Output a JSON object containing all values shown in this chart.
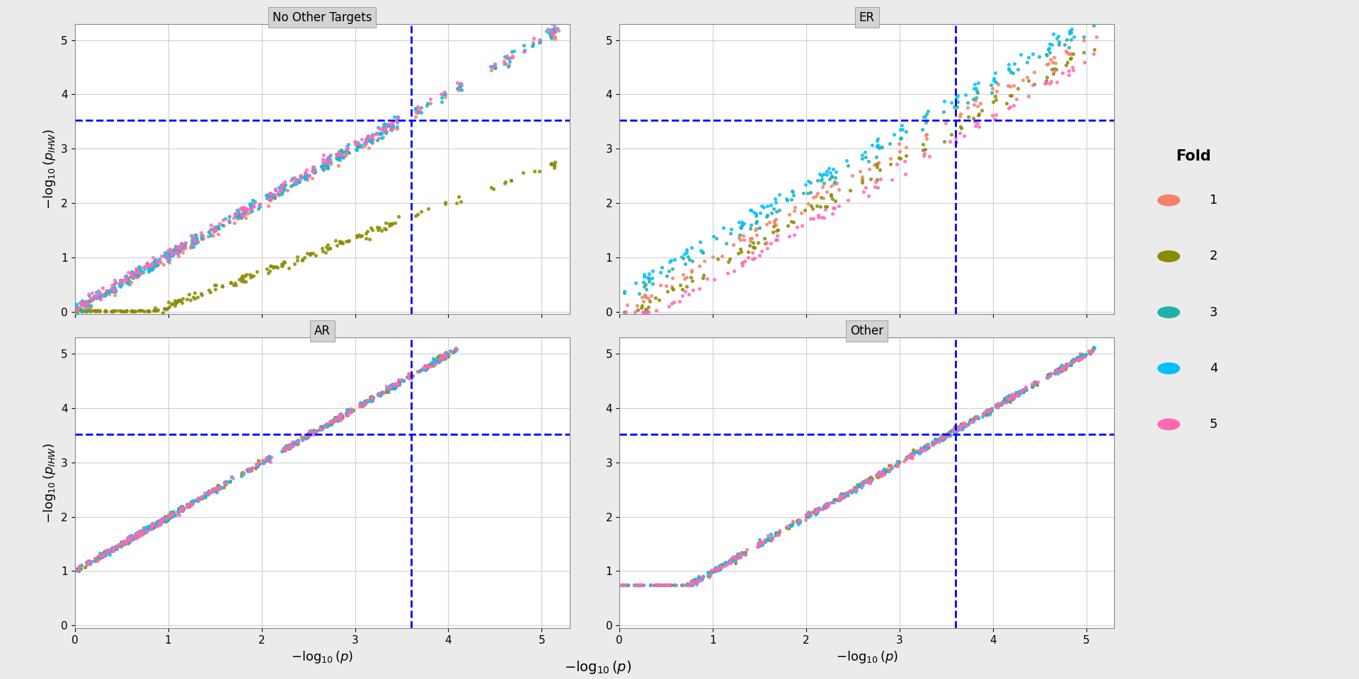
{
  "panels": [
    "No Other Targets",
    "ER",
    "AR",
    "Other"
  ],
  "folds": [
    1,
    2,
    3,
    4,
    5
  ],
  "fold_colors": [
    "#F4816A",
    "#8B8B00",
    "#20B2AA",
    "#00BFFF",
    "#FF69B4"
  ],
  "fold_labels": [
    "1",
    "2",
    "3",
    "4",
    "5"
  ],
  "hline_y": 3.52,
  "vline_x": 3.6,
  "xlim": [
    0,
    5.3
  ],
  "ylim": [
    -0.05,
    5.3
  ],
  "xlabel": "$-\\log_{10}(p)$",
  "ylabel": "$-\\log_{10}(p_{IHW})$",
  "background_color": "#EBEBEB",
  "plot_bg": "#FFFFFF",
  "grid_color": "#D0D0D0",
  "title_bg": "#D3D3D3",
  "title_bar_color": "#555555"
}
